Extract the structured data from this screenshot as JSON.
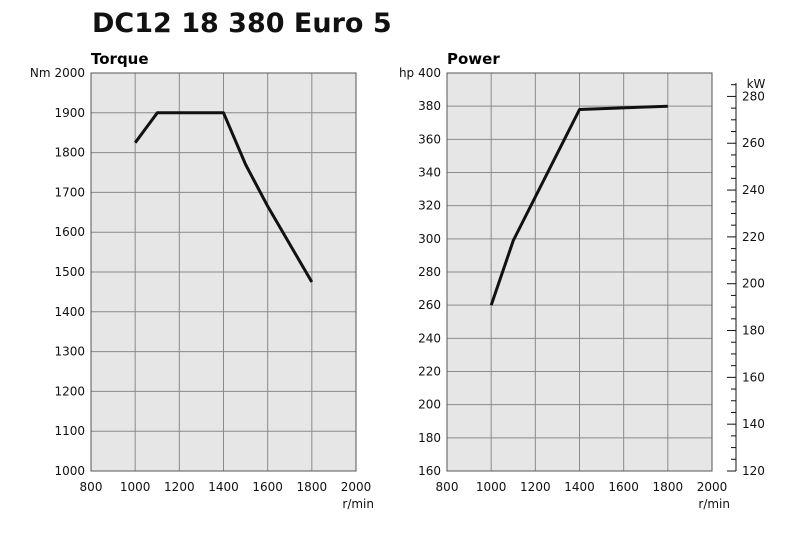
{
  "title": "DC12 18 380 Euro 5",
  "chart_data": [
    {
      "type": "line",
      "title": "Torque",
      "y_unit_label": "Nm",
      "xlabel": "r/min",
      "xlim": [
        800,
        2000
      ],
      "ylim": [
        1000,
        2000
      ],
      "x_ticks": [
        800,
        1000,
        1200,
        1400,
        1600,
        1800,
        2000
      ],
      "y_ticks": [
        1000,
        1100,
        1200,
        1300,
        1400,
        1500,
        1600,
        1700,
        1800,
        1900,
        2000
      ],
      "grid": true,
      "series": [
        {
          "x": [
            1000,
            1100,
            1400,
            1500,
            1600,
            1800
          ],
          "y": [
            1825,
            1900,
            1900,
            1770,
            1665,
            1475
          ]
        }
      ]
    },
    {
      "type": "line",
      "title": "Power",
      "y_unit_label": "hp",
      "y2_unit_label": "kW",
      "xlabel": "r/min",
      "xlim": [
        800,
        2000
      ],
      "ylim": [
        160,
        400
      ],
      "y2lim": [
        120,
        290
      ],
      "x_ticks": [
        800,
        1000,
        1200,
        1400,
        1600,
        1800,
        2000
      ],
      "y_ticks": [
        160,
        180,
        200,
        220,
        240,
        260,
        280,
        300,
        320,
        340,
        360,
        380,
        400
      ],
      "y2_ticks": [
        120,
        140,
        160,
        180,
        200,
        220,
        240,
        260,
        280
      ],
      "grid": true,
      "series": [
        {
          "x": [
            1000,
            1100,
            1400,
            1800
          ],
          "y": [
            260,
            299,
            378,
            380
          ]
        }
      ]
    }
  ]
}
